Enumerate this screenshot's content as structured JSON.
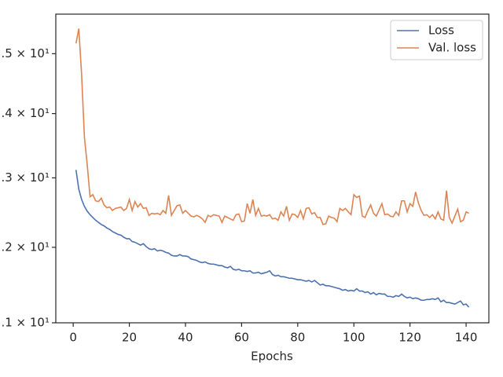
{
  "chart_data": {
    "type": "line",
    "xlabel": "Epochs",
    "log_y": true,
    "grid": false,
    "legend": "upper right",
    "x": [
      1,
      2,
      3,
      4,
      5,
      6,
      7,
      8,
      9,
      10,
      11,
      12,
      13,
      14,
      15,
      16,
      17,
      18,
      19,
      20,
      21,
      22,
      23,
      24,
      25,
      26,
      27,
      28,
      29,
      30,
      31,
      32,
      33,
      34,
      35,
      36,
      37,
      38,
      39,
      40,
      41,
      42,
      43,
      44,
      45,
      46,
      47,
      48,
      49,
      50,
      51,
      52,
      53,
      54,
      55,
      56,
      57,
      58,
      59,
      60,
      61,
      62,
      63,
      64,
      65,
      66,
      67,
      68,
      69,
      70,
      71,
      72,
      73,
      74,
      75,
      76,
      77,
      78,
      79,
      80,
      81,
      82,
      83,
      84,
      85,
      86,
      87,
      88,
      89,
      90,
      91,
      92,
      93,
      94,
      95,
      96,
      97,
      98,
      99,
      100,
      101,
      102,
      103,
      104,
      105,
      106,
      107,
      108,
      109,
      110,
      111,
      112,
      113,
      114,
      115,
      116,
      117,
      118,
      119,
      120,
      121,
      122,
      123,
      124,
      125,
      126,
      127,
      128,
      129,
      130,
      131,
      132,
      133,
      134,
      135,
      136,
      137,
      138,
      139,
      140,
      141
    ],
    "series": [
      {
        "name": "Loss",
        "color": "#4c72b0",
        "values": [
          13.12,
          12.83,
          12.68,
          12.58,
          12.51,
          12.46,
          12.42,
          12.38,
          12.35,
          12.32,
          12.3,
          12.27,
          12.25,
          12.22,
          12.2,
          12.18,
          12.17,
          12.14,
          12.12,
          12.12,
          12.08,
          12.07,
          12.05,
          12.03,
          12.05,
          12.01,
          11.98,
          11.97,
          11.98,
          11.95,
          11.96,
          11.95,
          11.93,
          11.92,
          11.89,
          11.88,
          11.88,
          11.9,
          11.88,
          11.88,
          11.87,
          11.84,
          11.83,
          11.82,
          11.8,
          11.79,
          11.8,
          11.78,
          11.77,
          11.77,
          11.76,
          11.75,
          11.75,
          11.73,
          11.72,
          11.74,
          11.7,
          11.69,
          11.7,
          11.68,
          11.68,
          11.67,
          11.68,
          11.65,
          11.65,
          11.66,
          11.64,
          11.65,
          11.66,
          11.68,
          11.63,
          11.61,
          11.62,
          11.6,
          11.6,
          11.59,
          11.58,
          11.58,
          11.57,
          11.56,
          11.56,
          11.55,
          11.54,
          11.55,
          11.53,
          11.55,
          11.52,
          11.49,
          11.5,
          11.48,
          11.48,
          11.47,
          11.46,
          11.45,
          11.44,
          11.42,
          11.43,
          11.41,
          11.42,
          11.41,
          11.44,
          11.41,
          11.41,
          11.39,
          11.4,
          11.37,
          11.39,
          11.36,
          11.38,
          11.37,
          11.37,
          11.34,
          11.34,
          11.33,
          11.35,
          11.34,
          11.37,
          11.34,
          11.32,
          11.33,
          11.31,
          11.32,
          11.31,
          11.29,
          11.29,
          11.3,
          11.3,
          11.31,
          11.3,
          11.32,
          11.27,
          11.29,
          11.26,
          11.26,
          11.25,
          11.24,
          11.26,
          11.28,
          11.23,
          11.24,
          11.2
        ]
      },
      {
        "name": "Val. loss",
        "color": "#dd8452",
        "values": [
          15.18,
          15.44,
          14.64,
          13.62,
          13.2,
          12.72,
          12.75,
          12.66,
          12.65,
          12.7,
          12.6,
          12.56,
          12.57,
          12.52,
          12.55,
          12.56,
          12.57,
          12.52,
          12.55,
          12.68,
          12.52,
          12.65,
          12.57,
          12.62,
          12.55,
          12.56,
          12.45,
          12.48,
          12.47,
          12.48,
          12.46,
          12.52,
          12.48,
          12.74,
          12.45,
          12.52,
          12.59,
          12.6,
          12.48,
          12.52,
          12.48,
          12.44,
          12.43,
          12.45,
          12.43,
          12.4,
          12.35,
          12.45,
          12.43,
          12.46,
          12.45,
          12.44,
          12.35,
          12.44,
          12.42,
          12.4,
          12.38,
          12.46,
          12.47,
          12.36,
          12.37,
          12.62,
          12.48,
          12.68,
          12.45,
          12.55,
          12.44,
          12.45,
          12.44,
          12.46,
          12.4,
          12.41,
          12.38,
          12.5,
          12.44,
          12.58,
          12.38,
          12.47,
          12.46,
          12.42,
          12.52,
          12.4,
          12.55,
          12.56,
          12.47,
          12.49,
          12.42,
          12.42,
          12.32,
          12.33,
          12.44,
          12.42,
          12.41,
          12.36,
          12.55,
          12.52,
          12.55,
          12.5,
          12.46,
          12.75,
          12.71,
          12.73,
          12.44,
          12.42,
          12.52,
          12.6,
          12.48,
          12.44,
          12.53,
          12.62,
          12.46,
          12.47,
          12.44,
          12.43,
          12.5,
          12.45,
          12.66,
          12.66,
          12.5,
          12.62,
          12.58,
          12.79,
          12.63,
          12.52,
          12.45,
          12.46,
          12.42,
          12.46,
          12.4,
          12.5,
          12.4,
          12.38,
          12.81,
          12.42,
          12.34,
          12.44,
          12.54,
          12.36,
          12.38,
          12.5,
          12.48
        ]
      }
    ],
    "xlim": [
      -6.2,
      148.1
    ],
    "ylim": [
      11,
      15.7
    ],
    "xticks": [
      0,
      20,
      40,
      60,
      80,
      100,
      120,
      140
    ],
    "yticks": [
      {
        "value": 11,
        "label": ".1 × 10¹"
      },
      {
        "value": 12,
        "label": ".2 × 10¹"
      },
      {
        "value": 13,
        "label": ".3 × 10¹"
      },
      {
        "value": 14,
        "label": ".4 × 10¹"
      },
      {
        "value": 15,
        "label": ".5 × 10¹"
      }
    ]
  }
}
